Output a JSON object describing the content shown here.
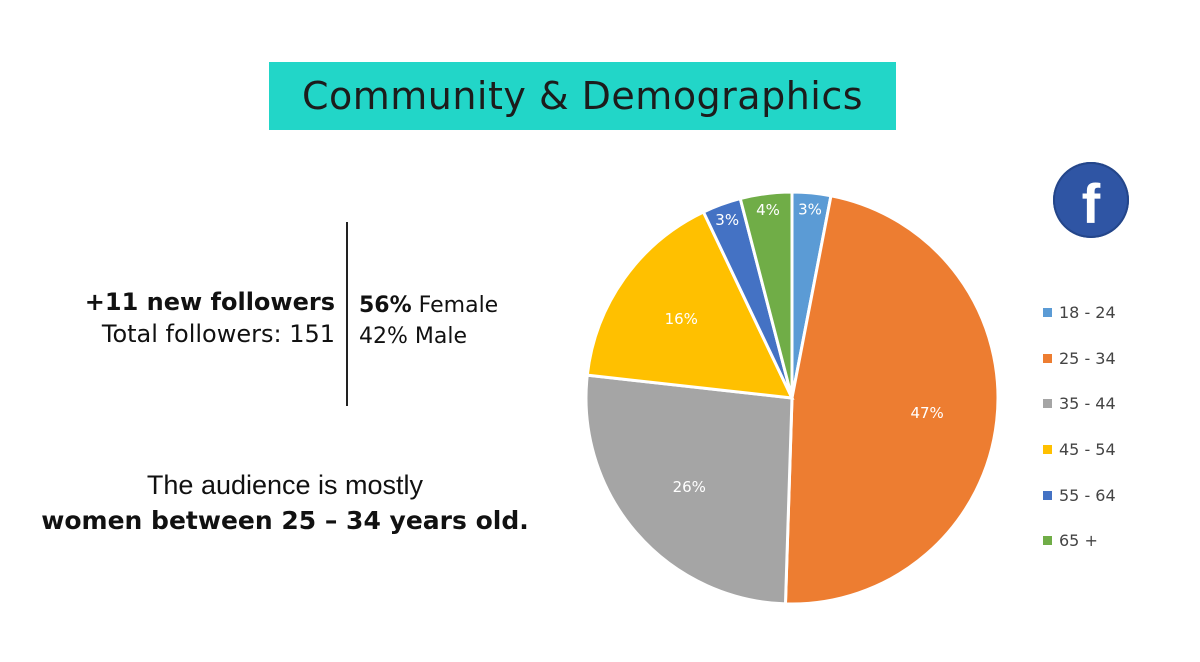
{
  "header": {
    "title": "Community & Demographics"
  },
  "followers": {
    "new_text": "+11 new followers",
    "total_text": "Total followers: 151"
  },
  "gender": {
    "female_pct": "56%",
    "female_label": "Female",
    "male_pct": "42%",
    "male_label": "Male"
  },
  "summary": {
    "line1": "The audience is mostly",
    "line2": "women between 25 – 34 years old."
  },
  "badge": {
    "icon": "facebook-icon",
    "glyph": "f"
  },
  "chart_data": {
    "type": "pie",
    "title": "",
    "categories": [
      "18 - 24",
      "25 - 34",
      "35 - 44",
      "45 - 54",
      "55 - 64",
      "65 +"
    ],
    "values": [
      3,
      47,
      26,
      16,
      3,
      4
    ],
    "labels": [
      "3%",
      "47%",
      "26%",
      "16%",
      "3%",
      "4%"
    ],
    "colors": [
      "#5b9bd5",
      "#ed7d31",
      "#a5a5a5",
      "#ffc000",
      "#4472c4",
      "#70ad47"
    ],
    "start_angle_deg": 0,
    "direction": "clockwise",
    "legend_position": "right"
  }
}
